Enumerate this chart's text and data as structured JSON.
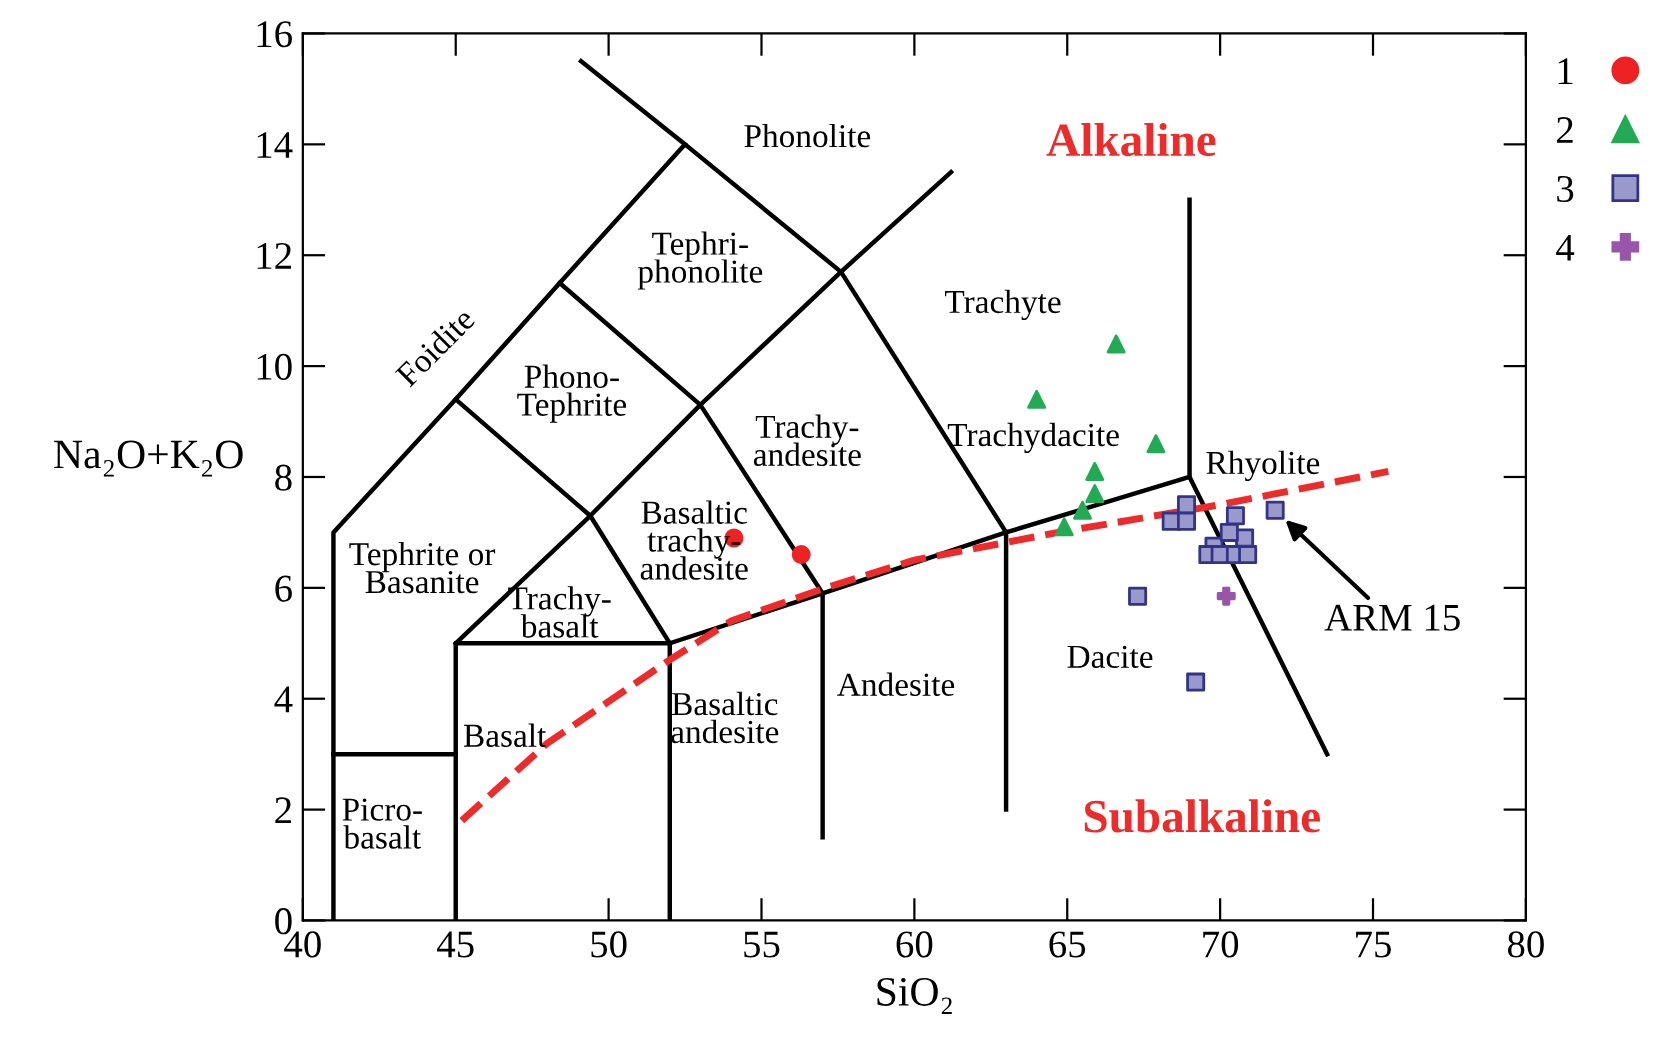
{
  "chart_data": {
    "type": "scatter",
    "xlabel": "SiO₂",
    "ylabel": "Na₂O+K₂O",
    "xlim": [
      40,
      80
    ],
    "ylim": [
      0,
      16
    ],
    "xticks": [
      40,
      45,
      50,
      55,
      60,
      65,
      70,
      75,
      80
    ],
    "yticks": [
      0,
      2,
      4,
      6,
      8,
      10,
      12,
      14,
      16
    ],
    "grid": false,
    "legend": "right",
    "series": [
      {
        "type": "line",
        "color": "#000000",
        "line_style": "solid",
        "marker": "none",
        "x": [
          41,
          41,
          45,
          48.4,
          52.5,
          57.6,
          63,
          69,
          69
        ],
        "values": [
          0,
          7,
          9.4,
          11.5,
          14,
          11.7,
          7,
          8,
          13
        ]
      },
      {
        "type": "line",
        "color": "#000000",
        "line_style": "solid",
        "marker": "none",
        "x": [
          49.1,
          52.5
        ],
        "values": [
          15.5,
          14
        ]
      },
      {
        "type": "line",
        "color": "#000000",
        "line_style": "solid",
        "marker": "none",
        "x": [
          45,
          45,
          52,
          52
        ],
        "values": [
          0,
          5,
          5,
          0
        ]
      },
      {
        "type": "line",
        "color": "#000000",
        "line_style": "solid",
        "marker": "none",
        "x": [
          45,
          49.4,
          52
        ],
        "values": [
          5,
          7.3,
          5
        ]
      },
      {
        "type": "line",
        "color": "#000000",
        "line_style": "solid",
        "marker": "none",
        "x": [
          45,
          49.4,
          53,
          57.6,
          61.2
        ],
        "values": [
          9.4,
          7.3,
          9.3,
          11.7,
          13.5
        ]
      },
      {
        "type": "line",
        "color": "#000000",
        "line_style": "solid",
        "marker": "none",
        "x": [
          48.4,
          53,
          57
        ],
        "values": [
          11.5,
          9.3,
          5.9
        ]
      },
      {
        "type": "line",
        "color": "#000000",
        "line_style": "solid",
        "marker": "none",
        "x": [
          52,
          57,
          63
        ],
        "values": [
          5,
          5.9,
          7
        ]
      },
      {
        "type": "line",
        "color": "#000000",
        "line_style": "solid",
        "marker": "none",
        "x": [
          57,
          57
        ],
        "values": [
          5.9,
          1.5
        ]
      },
      {
        "type": "line",
        "color": "#000000",
        "line_style": "solid",
        "marker": "none",
        "x": [
          63,
          63
        ],
        "values": [
          7,
          2
        ]
      },
      {
        "type": "line",
        "color": "#000000",
        "line_style": "solid",
        "marker": "none",
        "x": [
          41,
          45
        ],
        "values": [
          3,
          3
        ]
      },
      {
        "type": "line",
        "color": "#000000",
        "line_style": "solid",
        "marker": "none",
        "x": [
          69,
          73.5
        ],
        "values": [
          8,
          3
        ]
      },
      {
        "type": "line",
        "color": "#ee2b2b",
        "line_style": "dashed",
        "marker": "none",
        "x": [
          45.2,
          48,
          52,
          54,
          57.1,
          60,
          64.7,
          70,
          75.5
        ],
        "values": [
          1.8,
          3.2,
          4.7,
          5.4,
          6.0,
          6.5,
          7.0,
          7.5,
          8.1
        ]
      },
      {
        "name": "1",
        "marker": "circle",
        "color": "#ee2222",
        "x": [
          54.1,
          56.3
        ],
        "values": [
          6.9,
          6.6
        ]
      },
      {
        "name": "2",
        "marker": "triangle",
        "color": "#22aa55",
        "x": [
          64.0,
          66.6,
          67.9,
          65.9,
          65.9,
          65.5,
          64.9
        ],
        "values": [
          9.4,
          10.4,
          8.6,
          8.1,
          7.7,
          7.4,
          7.1
        ]
      },
      {
        "name": "3",
        "marker": "square",
        "color": "#9999cc",
        "x": [
          68.9,
          68.4,
          68.9,
          70.5,
          71.8,
          70.8,
          69.8,
          69.6,
          70.0,
          70.5,
          70.9,
          70.3,
          67.3,
          69.2
        ],
        "values": [
          7.5,
          7.2,
          7.2,
          7.3,
          7.4,
          6.9,
          6.75,
          6.6,
          6.6,
          6.6,
          6.6,
          7.0,
          5.85,
          4.3
        ]
      },
      {
        "name": "4",
        "marker": "cross",
        "color": "#9955aa",
        "x": [
          70.2
        ],
        "values": [
          5.85
        ]
      }
    ],
    "annotations": [
      "Phonolite",
      "Tephri-\nphonolite",
      "Foidite",
      "Phono-\nTephrite",
      "Trachyte",
      "Trachy-\nandesite",
      "Trachydacite",
      "Rhyolite",
      "Tephrite or\nBasanite",
      "Basaltic\ntrachy-\nandesite",
      "Trachy-\nbasalt",
      "Basalt",
      "Basaltic\nandesite",
      "Andesite",
      "Dacite",
      "Picro-\nbasalt",
      "Alkaline",
      "Subalkaline",
      {
        "text": "ARM 15",
        "x": 71.8,
        "y": 7.4
      }
    ]
  }
}
